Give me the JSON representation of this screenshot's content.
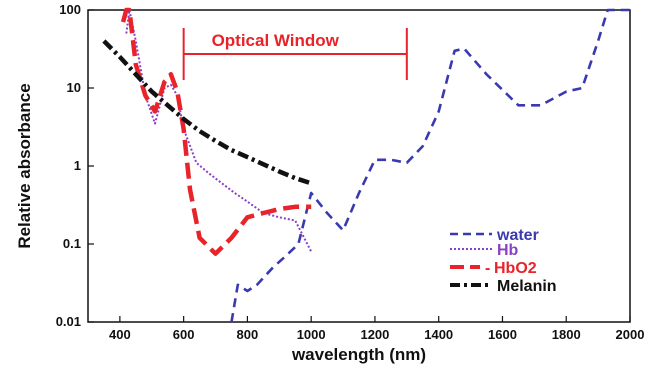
{
  "chart_data": {
    "type": "line",
    "xlabel": "wavelength (nm)",
    "ylabel": "Relative absorbance",
    "xlim": [
      300,
      2000
    ],
    "ylim": [
      0.01,
      100
    ],
    "yscale": "log",
    "grid": false,
    "legend_position": "bottom-right",
    "x_ticks": [
      400,
      600,
      800,
      1000,
      1200,
      1400,
      1600,
      1800,
      2000
    ],
    "x_tick_labels": [
      "400",
      "600",
      "800",
      "1000",
      "1200",
      "1400",
      "1600",
      "1800",
      "2000"
    ],
    "y_ticks": [
      0.01,
      0.1,
      1,
      10,
      100
    ],
    "y_tick_labels": [
      "0.01",
      "0.1",
      "1",
      "10",
      "100"
    ],
    "annotation": {
      "text": "Optical Window",
      "x_range": [
        600,
        1300
      ],
      "color": "#e8232a"
    },
    "series": [
      {
        "name": "water",
        "color": "#3a3ab0",
        "dash": "dash",
        "points": [
          [
            750,
            0.01
          ],
          [
            770,
            0.03
          ],
          [
            800,
            0.025
          ],
          [
            830,
            0.03
          ],
          [
            880,
            0.05
          ],
          [
            920,
            0.07
          ],
          [
            960,
            0.1
          ],
          [
            1000,
            0.45
          ],
          [
            1050,
            0.25
          ],
          [
            1100,
            0.15
          ],
          [
            1150,
            0.45
          ],
          [
            1200,
            1.2
          ],
          [
            1250,
            1.2
          ],
          [
            1300,
            1.1
          ],
          [
            1350,
            1.8
          ],
          [
            1400,
            5
          ],
          [
            1450,
            30
          ],
          [
            1480,
            32
          ],
          [
            1550,
            15
          ],
          [
            1650,
            6
          ],
          [
            1720,
            6
          ],
          [
            1800,
            9
          ],
          [
            1850,
            10
          ],
          [
            1900,
            40
          ],
          [
            1930,
            130
          ],
          [
            1970,
            120
          ],
          [
            2000,
            100
          ]
        ]
      },
      {
        "name": "Hb",
        "color": "#8a3fc7",
        "dash": "dot",
        "points": [
          [
            420,
            50
          ],
          [
            430,
            125
          ],
          [
            450,
            40
          ],
          [
            480,
            8
          ],
          [
            510,
            3.5
          ],
          [
            540,
            10
          ],
          [
            560,
            11
          ],
          [
            580,
            8
          ],
          [
            600,
            3
          ],
          [
            640,
            1.1
          ],
          [
            680,
            0.8
          ],
          [
            720,
            0.6
          ],
          [
            760,
            0.45
          ],
          [
            800,
            0.35
          ],
          [
            850,
            0.25
          ],
          [
            900,
            0.22
          ],
          [
            950,
            0.2
          ],
          [
            1000,
            0.08
          ]
        ]
      },
      {
        "name": "HbO2",
        "color": "#e8232a",
        "dash": "longdash",
        "points": [
          [
            410,
            70
          ],
          [
            420,
            110
          ],
          [
            430,
            100
          ],
          [
            450,
            20
          ],
          [
            480,
            8
          ],
          [
            510,
            5
          ],
          [
            540,
            12
          ],
          [
            560,
            15
          ],
          [
            580,
            9
          ],
          [
            600,
            3
          ],
          [
            620,
            0.5
          ],
          [
            650,
            0.12
          ],
          [
            700,
            0.075
          ],
          [
            750,
            0.12
          ],
          [
            800,
            0.22
          ],
          [
            850,
            0.25
          ],
          [
            900,
            0.28
          ],
          [
            950,
            0.3
          ],
          [
            1000,
            0.3
          ]
        ]
      },
      {
        "name": "Melanin",
        "color": "#111111",
        "dash": "dashdot",
        "points": [
          [
            350,
            40
          ],
          [
            400,
            25
          ],
          [
            450,
            15
          ],
          [
            500,
            9
          ],
          [
            550,
            6
          ],
          [
            600,
            4
          ],
          [
            650,
            2.8
          ],
          [
            700,
            2.1
          ],
          [
            750,
            1.6
          ],
          [
            800,
            1.3
          ],
          [
            850,
            1.05
          ],
          [
            900,
            0.85
          ],
          [
            950,
            0.7
          ],
          [
            1000,
            0.6
          ]
        ]
      }
    ]
  }
}
